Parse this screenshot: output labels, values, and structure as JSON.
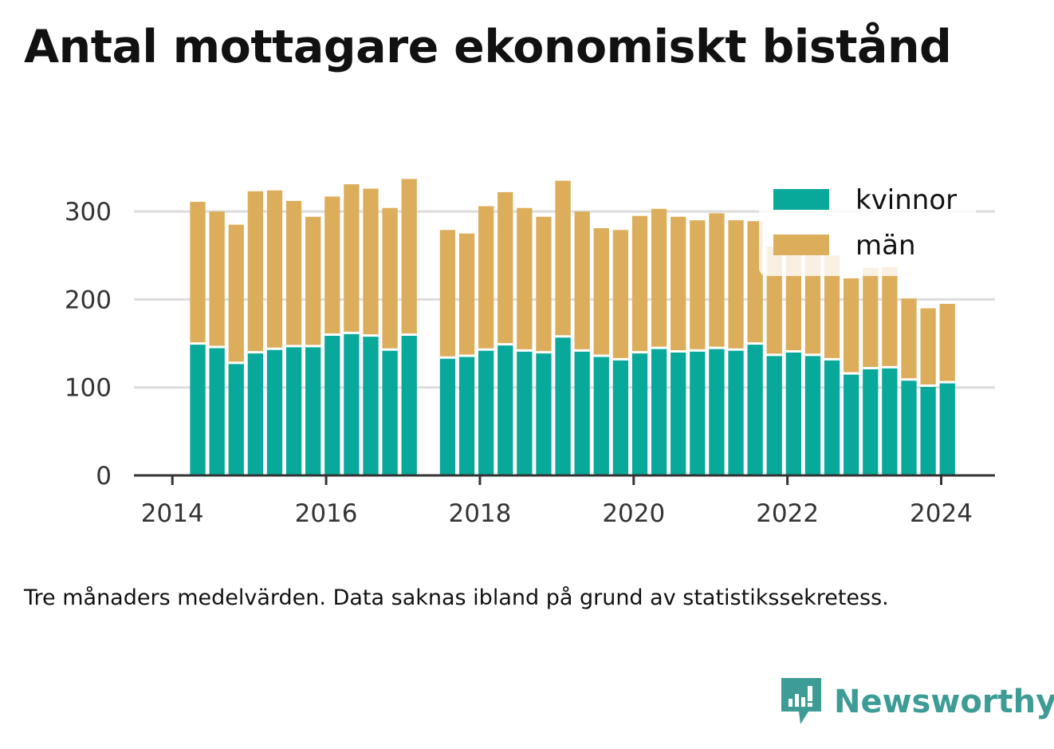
{
  "title": "Antal mottagare ekonomiskt bistånd",
  "note": "Tre månaders medelvärden. Data saknas ibland på grund av statistikssekretess.",
  "brand": {
    "name": "Newsworthy",
    "icon": "newsworthy-logo-icon"
  },
  "colors": {
    "kvinnor": "#08a89a",
    "man": "#dcae5c",
    "grid": "#dcdcdc",
    "axis": "#333333"
  },
  "chart_data": {
    "type": "bar",
    "stacked": true,
    "x_ticks": [
      "2014",
      "2016",
      "2018",
      "2020",
      "2022",
      "2024"
    ],
    "y_ticks": [
      "0",
      "100",
      "200",
      "300"
    ],
    "ylim": [
      0,
      350
    ],
    "xlim": [
      2013.5,
      2024.7
    ],
    "grid": true,
    "legend_position": "top-right",
    "legend": [
      "kvinnor",
      "män"
    ],
    "x": [
      2014.33,
      2014.58,
      2014.83,
      2015.08,
      2015.33,
      2015.58,
      2015.83,
      2016.08,
      2016.33,
      2016.58,
      2016.83,
      2017.08,
      2017.58,
      2017.83,
      2018.08,
      2018.33,
      2018.58,
      2018.83,
      2019.08,
      2019.33,
      2019.58,
      2019.83,
      2020.08,
      2020.33,
      2020.58,
      2020.83,
      2021.08,
      2021.33,
      2021.58,
      2021.83,
      2022.08,
      2022.33,
      2022.58,
      2022.83,
      2023.08,
      2023.33,
      2023.58,
      2023.83,
      2024.08
    ],
    "series": [
      {
        "name": "kvinnor",
        "values": [
          150,
          146,
          128,
          140,
          144,
          147,
          147,
          160,
          162,
          159,
          143,
          160,
          134,
          136,
          143,
          149,
          142,
          140,
          158,
          142,
          136,
          132,
          140,
          145,
          141,
          142,
          145,
          143,
          150,
          137,
          141,
          137,
          132,
          116,
          122,
          123,
          109,
          102,
          106
        ]
      },
      {
        "name": "män",
        "values": [
          161,
          154,
          157,
          183,
          180,
          165,
          147,
          157,
          169,
          167,
          161,
          177,
          145,
          139,
          163,
          173,
          162,
          154,
          177,
          158,
          145,
          147,
          155,
          158,
          153,
          148,
          153,
          147,
          139,
          123,
          123,
          125,
          118,
          108,
          114,
          114,
          92,
          88,
          89
        ]
      }
    ]
  }
}
